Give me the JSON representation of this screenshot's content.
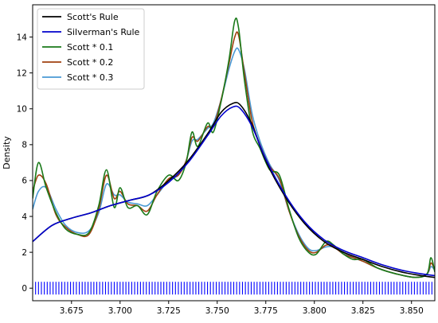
{
  "chart_data": {
    "type": "line",
    "title": "",
    "xlabel": "",
    "ylabel": "Density",
    "xlim": [
      3.655,
      3.862
    ],
    "ylim": [
      -0.7,
      15.8
    ],
    "xticks": [
      3.675,
      3.7,
      3.725,
      3.75,
      3.775,
      3.8,
      3.825,
      3.85
    ],
    "xtick_labels": [
      "3.675",
      "3.700",
      "3.725",
      "3.750",
      "3.775",
      "3.800",
      "3.825",
      "3.850"
    ],
    "yticks": [
      0,
      2,
      4,
      6,
      8,
      10,
      12,
      14
    ],
    "ytick_labels": [
      "0",
      "2",
      "4",
      "6",
      "8",
      "10",
      "12",
      "14"
    ],
    "grid": false,
    "legend_position": "upper-left",
    "series": [
      {
        "name": "Scott's Rule",
        "color": "#000000",
        "x": [
          3.655,
          3.665,
          3.675,
          3.685,
          3.695,
          3.705,
          3.715,
          3.725,
          3.735,
          3.745,
          3.752,
          3.758,
          3.762,
          3.768,
          3.775,
          3.785,
          3.795,
          3.805,
          3.815,
          3.825,
          3.835,
          3.845,
          3.855,
          3.862
        ],
        "y": [
          2.6,
          3.5,
          3.9,
          4.2,
          4.6,
          4.9,
          5.2,
          6.0,
          7.1,
          8.6,
          9.8,
          10.3,
          10.2,
          9.1,
          7.1,
          5.1,
          3.6,
          2.6,
          2.0,
          1.6,
          1.2,
          0.9,
          0.7,
          0.6
        ]
      },
      {
        "name": "Silverman's Rule",
        "color": "#0000cc",
        "x": [
          3.655,
          3.665,
          3.675,
          3.685,
          3.695,
          3.705,
          3.715,
          3.725,
          3.735,
          3.745,
          3.752,
          3.758,
          3.762,
          3.768,
          3.775,
          3.785,
          3.795,
          3.805,
          3.815,
          3.825,
          3.835,
          3.845,
          3.855,
          3.862
        ],
        "y": [
          2.6,
          3.5,
          3.9,
          4.2,
          4.6,
          4.9,
          5.2,
          5.9,
          7.0,
          8.5,
          9.6,
          10.1,
          10.0,
          9.0,
          7.2,
          5.2,
          3.7,
          2.7,
          2.1,
          1.7,
          1.3,
          1.0,
          0.8,
          0.7
        ]
      },
      {
        "name": "Scott * 0.1",
        "color": "#1a7a1a",
        "x": [
          3.655,
          3.658,
          3.662,
          3.667,
          3.672,
          3.678,
          3.684,
          3.689,
          3.693,
          3.697,
          3.7,
          3.704,
          3.709,
          3.714,
          3.719,
          3.725,
          3.73,
          3.734,
          3.737,
          3.74,
          3.745,
          3.748,
          3.752,
          3.756,
          3.759,
          3.761,
          3.764,
          3.768,
          3.772,
          3.777,
          3.782,
          3.787,
          3.792,
          3.797,
          3.801,
          3.806,
          3.81,
          3.815,
          3.82,
          3.825,
          3.833,
          3.842,
          3.852,
          3.858,
          3.86,
          3.862
        ],
        "y": [
          5.0,
          7.0,
          5.6,
          4.2,
          3.3,
          3.0,
          3.1,
          4.6,
          6.6,
          4.5,
          5.6,
          4.5,
          4.6,
          4.1,
          5.4,
          6.3,
          6.0,
          7.0,
          8.7,
          7.9,
          9.2,
          8.7,
          10.4,
          12.7,
          14.9,
          14.5,
          11.6,
          8.8,
          7.8,
          6.6,
          6.3,
          4.4,
          2.8,
          2.0,
          1.9,
          2.6,
          2.4,
          1.9,
          1.6,
          1.6,
          1.1,
          0.8,
          0.6,
          0.8,
          1.7,
          0.9
        ]
      },
      {
        "name": "Scott * 0.2",
        "color": "#a0400f",
        "x": [
          3.655,
          3.658,
          3.662,
          3.667,
          3.672,
          3.678,
          3.684,
          3.689,
          3.693,
          3.697,
          3.7,
          3.704,
          3.709,
          3.714,
          3.719,
          3.725,
          3.73,
          3.734,
          3.737,
          3.74,
          3.745,
          3.748,
          3.752,
          3.756,
          3.759,
          3.761,
          3.764,
          3.768,
          3.772,
          3.777,
          3.782,
          3.787,
          3.792,
          3.797,
          3.801,
          3.806,
          3.81,
          3.815,
          3.82,
          3.825,
          3.833,
          3.842,
          3.852,
          3.858,
          3.86,
          3.862
        ],
        "y": [
          5.4,
          6.3,
          5.8,
          4.1,
          3.4,
          3.0,
          3.0,
          4.4,
          6.3,
          5.0,
          5.4,
          4.7,
          4.6,
          4.3,
          5.2,
          6.1,
          6.3,
          7.1,
          8.4,
          8.2,
          9.0,
          9.0,
          10.5,
          12.5,
          14.0,
          14.1,
          12.0,
          9.3,
          8.0,
          6.8,
          6.1,
          4.3,
          2.9,
          2.1,
          2.0,
          2.4,
          2.3,
          1.9,
          1.7,
          1.5,
          1.1,
          0.8,
          0.6,
          0.8,
          1.4,
          1.0
        ]
      },
      {
        "name": "Scott * 0.3",
        "color": "#4a9ad4",
        "x": [
          3.655,
          3.658,
          3.662,
          3.667,
          3.672,
          3.678,
          3.684,
          3.689,
          3.693,
          3.697,
          3.7,
          3.704,
          3.709,
          3.714,
          3.719,
          3.725,
          3.73,
          3.734,
          3.737,
          3.74,
          3.745,
          3.748,
          3.752,
          3.756,
          3.759,
          3.761,
          3.764,
          3.768,
          3.772,
          3.777,
          3.782,
          3.787,
          3.792,
          3.797,
          3.801,
          3.806,
          3.81,
          3.815,
          3.82,
          3.825,
          3.833,
          3.842,
          3.852,
          3.858,
          3.86,
          3.862
        ],
        "y": [
          4.4,
          5.4,
          5.6,
          4.4,
          3.5,
          3.1,
          3.2,
          4.2,
          5.8,
          5.2,
          5.2,
          4.8,
          4.7,
          4.6,
          5.2,
          6.0,
          6.3,
          7.1,
          8.2,
          8.3,
          8.9,
          9.2,
          10.5,
          12.2,
          13.2,
          13.3,
          12.2,
          9.7,
          8.2,
          6.9,
          6.0,
          4.3,
          3.0,
          2.2,
          2.1,
          2.3,
          2.3,
          2.0,
          1.7,
          1.5,
          1.1,
          0.8,
          0.6,
          0.8,
          1.2,
          1.0
        ]
      }
    ],
    "rug": {
      "color": "#0000ff",
      "y": 0,
      "x": [
        3.655,
        3.6565,
        3.658,
        3.6595,
        3.661,
        3.6625,
        3.664,
        3.6655,
        3.667,
        3.6685,
        3.67,
        3.6715,
        3.673,
        3.6745,
        3.676,
        3.6775,
        3.679,
        3.6805,
        3.682,
        3.6835,
        3.685,
        3.6865,
        3.688,
        3.6895,
        3.691,
        3.6925,
        3.694,
        3.6955,
        3.697,
        3.6985,
        3.7,
        3.7015,
        3.703,
        3.7045,
        3.706,
        3.7075,
        3.709,
        3.7105,
        3.712,
        3.7135,
        3.715,
        3.7165,
        3.718,
        3.7195,
        3.721,
        3.7225,
        3.724,
        3.7255,
        3.727,
        3.7285,
        3.73,
        3.7315,
        3.733,
        3.7345,
        3.736,
        3.7375,
        3.739,
        3.7405,
        3.742,
        3.7435,
        3.745,
        3.7465,
        3.748,
        3.7495,
        3.751,
        3.7525,
        3.754,
        3.7555,
        3.757,
        3.7585,
        3.76,
        3.7615,
        3.763,
        3.7645,
        3.766,
        3.7675,
        3.769,
        3.7705,
        3.772,
        3.7735,
        3.775,
        3.7765,
        3.778,
        3.7795,
        3.781,
        3.7825,
        3.784,
        3.7855,
        3.787,
        3.7885,
        3.79,
        3.7915,
        3.793,
        3.7945,
        3.796,
        3.7975,
        3.799,
        3.8005,
        3.802,
        3.8035,
        3.805,
        3.8065,
        3.808,
        3.8095,
        3.811,
        3.8125,
        3.814,
        3.8155,
        3.817,
        3.8185,
        3.82,
        3.8215,
        3.823,
        3.8245,
        3.826,
        3.8275,
        3.829,
        3.8305,
        3.832,
        3.8335,
        3.835,
        3.8365,
        3.838,
        3.8395,
        3.841,
        3.8425,
        3.844,
        3.8455,
        3.847,
        3.8485,
        3.85,
        3.8515,
        3.853,
        3.8545,
        3.856,
        3.8575,
        3.859,
        3.8605,
        3.862
      ]
    }
  }
}
